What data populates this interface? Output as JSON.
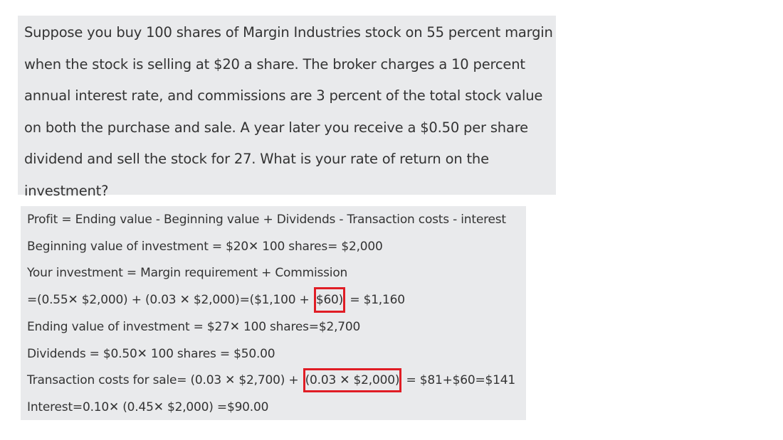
{
  "question": {
    "lines": [
      "Suppose you buy 100 shares of Margin Industries stock on 55 percent margin",
      "when the stock is selling at $20 a share. The broker charges a 10 percent",
      "annual interest rate, and commissions are 3 percent of the total stock value",
      "on both the purchase and sale. A year later you receive a $0.50 per share",
      "dividend and sell the stock for 27. What is your rate of return on the",
      "investment?"
    ]
  },
  "solution": {
    "profit_formula": "Profit = Ending value - Beginning value + Dividends - Transaction costs - interest",
    "beginning_value": "Beginning value of investment = $20✕ 100 shares= $2,000",
    "your_investment": "Your investment = Margin requirement + Commission",
    "investment_calc": {
      "prefix": "=(0.55✕ $2,000) + (0.03 ✕ $2,000)=($1,100 +",
      "highlight": "$60)",
      "suffix": "= $1,160"
    },
    "ending_value": "Ending value of investment = $27✕ 100 shares=$2,700",
    "dividends": "Dividends = $0.50✕ 100 shares = $50.00",
    "transaction_costs": {
      "prefix": "Transaction costs for sale= (0.03 ✕ $2,700) +",
      "highlight": "(0.03 ✕ $2,000)",
      "suffix": "= $81+$60=$141"
    },
    "interest": "Interest=0.10✕  (0.45✕ $2,000) =$90.00"
  },
  "colors": {
    "box_background": "#e9eaec",
    "text": "#333333",
    "highlight_border": "#e01d25"
  }
}
